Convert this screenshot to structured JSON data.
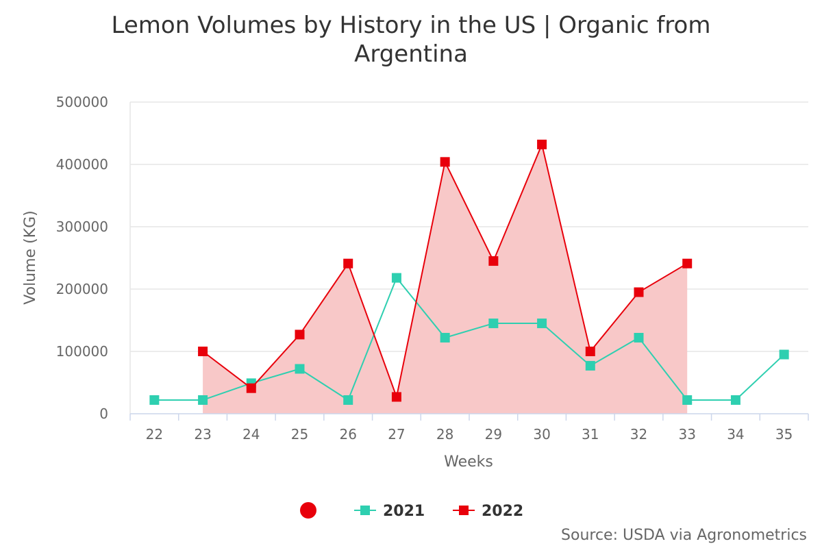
{
  "chart_data": {
    "type": "line",
    "title_lines": [
      "Lemon Volumes by History in the US | Organic from",
      "Argentina"
    ],
    "xlabel": "Weeks",
    "ylabel": "Volume (KG)",
    "categories": [
      "22",
      "23",
      "24",
      "25",
      "26",
      "27",
      "28",
      "29",
      "30",
      "31",
      "32",
      "33",
      "34",
      "35"
    ],
    "y_ticks": [
      "0",
      "100000",
      "200000",
      "300000",
      "400000",
      "500000"
    ],
    "ylim": [
      0,
      500000
    ],
    "series": [
      {
        "name": "2021",
        "color": "#2ecfb0",
        "marker": "square",
        "fill": false,
        "values": [
          22000,
          22000,
          49000,
          72000,
          22000,
          218000,
          122000,
          145000,
          145000,
          77000,
          122000,
          22000,
          22000,
          95000
        ]
      },
      {
        "name": "2022",
        "color": "#e8000b",
        "fill_color": "#f8c8c8",
        "marker": "square",
        "fill": true,
        "values": [
          null,
          100000,
          41000,
          127000,
          241000,
          27000,
          404000,
          245000,
          432000,
          100000,
          195000,
          241000,
          null,
          null
        ]
      }
    ],
    "legend": {
      "placement": "bottom-center",
      "extra_marker_color": "#e8000b",
      "items": [
        "2021",
        "2022"
      ]
    },
    "credit": "Source: USDA via Agronometrics",
    "grid": true
  }
}
